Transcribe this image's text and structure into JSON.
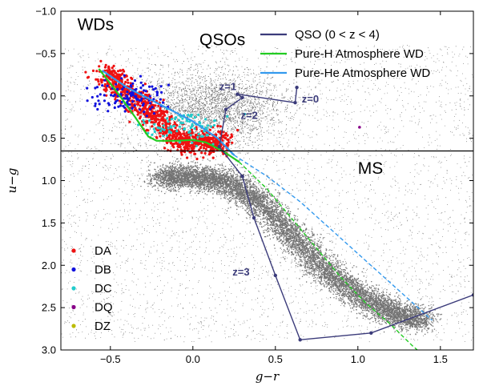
{
  "chart_data": {
    "type": "scatter",
    "xlabel": "g−r",
    "ylabel": "u−g",
    "xlim": [
      -0.8,
      1.7
    ],
    "ylim": [
      3.0,
      -1.0
    ],
    "y_inverted": true,
    "x_ticks": [
      "−0.5",
      "0.0",
      "0.5",
      "1.0",
      "1.5"
    ],
    "x_tick_values": [
      -0.5,
      0.0,
      0.5,
      1.0,
      1.5
    ],
    "y_ticks": [
      "−1.0",
      "−0.5",
      "0.0",
      "0.5",
      "1.0",
      "1.5",
      "2.0",
      "2.5",
      "3.0"
    ],
    "y_tick_values": [
      -1.0,
      -0.5,
      0.0,
      0.5,
      1.0,
      1.5,
      2.0,
      2.5,
      3.0
    ],
    "divider_ug": 0.65,
    "region_labels": [
      {
        "text": "WDs",
        "x": -0.7,
        "y": -0.78
      },
      {
        "text": "QSOs",
        "x": 0.04,
        "y": -0.6
      },
      {
        "text": "MS",
        "x": 1.0,
        "y": 0.92
      }
    ],
    "legend": [
      {
        "label": "QSO (0 < z < 4)",
        "color": "#3b3b7a"
      },
      {
        "label": "Pure-H Atmosphere WD",
        "color": "#22cc22"
      },
      {
        "label": "Pure-He Atmosphere WD",
        "color": "#3399ee"
      }
    ],
    "class_legend": [
      {
        "label": "DA",
        "color": "#ee1111"
      },
      {
        "label": "DB",
        "color": "#1111dd"
      },
      {
        "label": "DC",
        "color": "#22cccc"
      },
      {
        "label": "DQ",
        "color": "#880088"
      },
      {
        "label": "DZ",
        "color": "#bbbb00"
      }
    ],
    "qso_track": {
      "name": "QSO (0 < z < 4)",
      "color": "#3b3b7a",
      "points": [
        [
          0.63,
          -0.1
        ],
        [
          0.62,
          0.08
        ],
        [
          0.27,
          -0.02
        ],
        [
          0.3,
          0.02
        ],
        [
          0.2,
          0.16
        ],
        [
          0.16,
          0.6
        ],
        [
          0.3,
          0.95
        ],
        [
          0.37,
          1.44
        ],
        [
          0.5,
          2.12
        ],
        [
          0.65,
          2.88
        ],
        [
          1.08,
          2.8
        ],
        [
          1.7,
          2.35
        ]
      ],
      "z_labels": [
        {
          "text": "z=1",
          "x": 0.16,
          "y": -0.07
        },
        {
          "text": "z=2",
          "x": 0.29,
          "y": 0.27
        },
        {
          "text": "z=0",
          "x": 0.66,
          "y": 0.08
        },
        {
          "text": "z=3",
          "x": 0.24,
          "y": 2.12
        }
      ]
    },
    "pure_h_wd": {
      "name": "Pure-H Atmosphere WD",
      "color": "#22cc22",
      "solid": [
        [
          -0.57,
          -0.32
        ],
        [
          -0.45,
          -0.02
        ],
        [
          -0.35,
          0.25
        ],
        [
          -0.27,
          0.48
        ],
        [
          -0.22,
          0.53
        ],
        [
          -0.1,
          0.53
        ],
        [
          0.0,
          0.52
        ],
        [
          0.08,
          0.55
        ],
        [
          0.18,
          0.65
        ],
        [
          0.28,
          0.78
        ]
      ],
      "dashed": [
        [
          0.28,
          0.78
        ],
        [
          0.45,
          1.1
        ],
        [
          0.6,
          1.45
        ],
        [
          0.75,
          1.8
        ],
        [
          0.9,
          2.15
        ],
        [
          1.05,
          2.45
        ],
        [
          1.2,
          2.7
        ],
        [
          1.33,
          2.95
        ],
        [
          1.36,
          3.0
        ]
      ]
    },
    "pure_he_wd": {
      "name": "Pure-He Atmosphere WD",
      "color": "#3399ee",
      "solid": [
        [
          -0.55,
          -0.3
        ],
        [
          -0.4,
          -0.1
        ],
        [
          -0.2,
          0.1
        ],
        [
          0.0,
          0.3
        ],
        [
          0.15,
          0.5
        ],
        [
          0.25,
          0.7
        ]
      ],
      "dashed": [
        [
          0.25,
          0.7
        ],
        [
          0.45,
          0.95
        ],
        [
          0.65,
          1.25
        ],
        [
          0.85,
          1.6
        ],
        [
          1.05,
          1.95
        ],
        [
          1.25,
          2.3
        ],
        [
          1.45,
          2.65
        ]
      ]
    },
    "wd_classes": [
      {
        "name": "DA",
        "color": "#ee1111",
        "center": [
          -0.32,
          0.35
        ]
      },
      {
        "name": "DB",
        "color": "#1111dd",
        "center": [
          -0.38,
          0.0
        ]
      },
      {
        "name": "DC",
        "color": "#22cccc",
        "center": [
          -0.05,
          0.35
        ]
      },
      {
        "name": "DQ",
        "color": "#880088",
        "points": [
          [
            1.01,
            0.37
          ]
        ]
      }
    ],
    "stellar_locus": [
      [
        -0.2,
        0.95
      ],
      [
        0.0,
        0.95
      ],
      [
        0.2,
        1.0
      ],
      [
        0.4,
        1.25
      ],
      [
        0.6,
        1.65
      ],
      [
        0.8,
        2.05
      ],
      [
        1.0,
        2.35
      ],
      [
        1.2,
        2.55
      ],
      [
        1.4,
        2.65
      ]
    ]
  }
}
